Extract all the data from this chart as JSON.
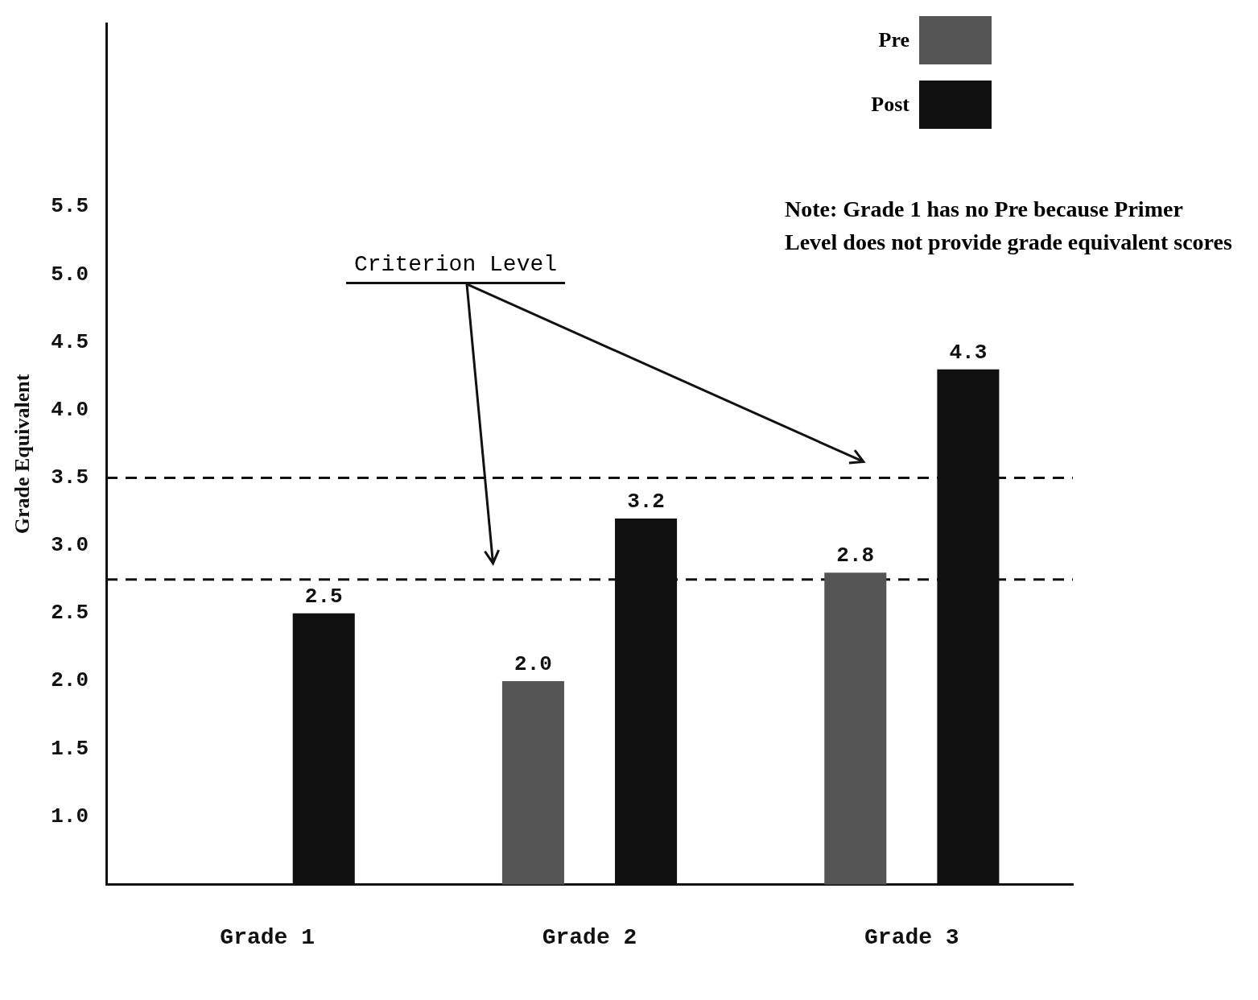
{
  "chart_data": {
    "type": "bar",
    "ylabel": "Grade Equivalent",
    "categories": [
      "Grade 1",
      "Grade 2",
      "Grade 3"
    ],
    "series": [
      {
        "name": "Pre",
        "color": "#555555",
        "values": [
          null,
          2.0,
          2.8
        ],
        "value_labels": [
          null,
          "2.0",
          "2.8"
        ]
      },
      {
        "name": "Post",
        "color": "#111111",
        "values": [
          2.5,
          3.2,
          4.3
        ],
        "value_labels": [
          "2.5",
          "3.2",
          "4.3"
        ]
      }
    ],
    "ylim": [
      0.5,
      6.85
    ],
    "yticks": [
      {
        "value": 1,
        "label": "1.0"
      },
      1.5,
      {
        "value": 2,
        "label": "2.0"
      },
      2.5,
      {
        "value": 3,
        "label": "3.0"
      },
      3.5,
      {
        "value": 4,
        "label": "4.0"
      },
      4.5,
      {
        "value": 5,
        "label": "5.0"
      },
      5.5
    ],
    "ref_lines": [
      {
        "axis": "y",
        "value": 2.75,
        "line_style": "dashed",
        "color": "#111111"
      },
      {
        "axis": "y",
        "value": 3.5,
        "line_style": "dashed",
        "color": "#111111"
      }
    ],
    "annotations": [
      "Criterion Level",
      "Note:  Grade 1 has no Pre because Primer Level does not provide grade equivalent scores"
    ],
    "grid": false,
    "legend": "top right"
  }
}
